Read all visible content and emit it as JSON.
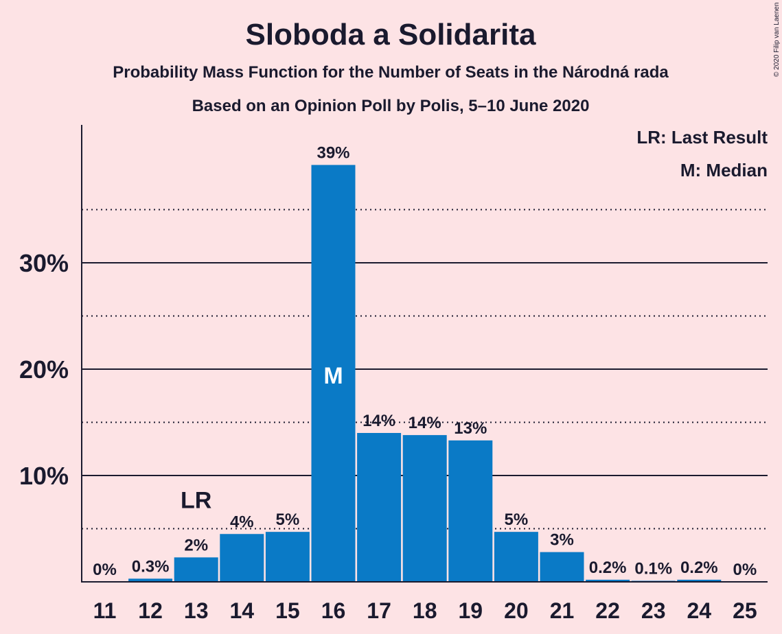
{
  "chart_data": {
    "type": "bar",
    "title": "Sloboda a Solidarita",
    "subtitle": "Probability Mass Function for the Number of Seats in the Národná rada",
    "subtitle2": "Based on an Opinion Poll by Polis, 5–10 June 2020",
    "categories": [
      "11",
      "12",
      "13",
      "14",
      "15",
      "16",
      "17",
      "18",
      "19",
      "20",
      "21",
      "22",
      "23",
      "24",
      "25"
    ],
    "values": [
      0,
      0.3,
      2.3,
      4.5,
      4.7,
      39.2,
      14.0,
      13.8,
      13.3,
      4.7,
      2.8,
      0.2,
      0.1,
      0.2,
      0
    ],
    "labels": [
      "0%",
      "0.3%",
      "2%",
      "4%",
      "5%",
      "39%",
      "14%",
      "14%",
      "13%",
      "5%",
      "3%",
      "0.2%",
      "0.1%",
      "0.2%",
      "0%"
    ],
    "yticks": [
      {
        "value": 10,
        "label": "10%"
      },
      {
        "value": 20,
        "label": "20%"
      },
      {
        "value": 30,
        "label": "30%"
      }
    ],
    "ylim": [
      0,
      43
    ],
    "grid_solid": [
      10,
      20,
      30
    ],
    "grid_dotted": [
      5,
      15,
      25,
      35
    ],
    "bar_color": "#0a7ac6",
    "last_result": {
      "category": "13",
      "label": "LR"
    },
    "median": {
      "category": "16",
      "label": "M"
    },
    "legend": [
      "LR: Last Result",
      "M: Median"
    ],
    "legend_position": "top-right"
  },
  "credit": "© 2020 Filip van Laenen"
}
